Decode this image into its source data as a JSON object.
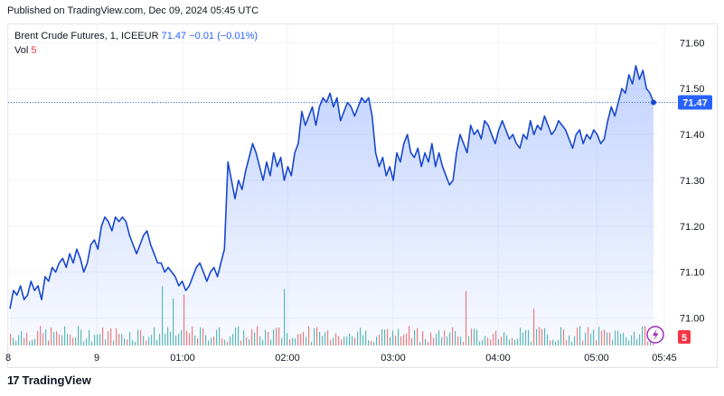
{
  "banner": "Published on TradingView.com, Dec 09, 2024 05:45 UTC",
  "legend": {
    "symbol": "Brent Crude Futures, 1, ICEEUR",
    "last": "71.47",
    "change": "−0.01 (−0.01%)",
    "vol_label": "Vol",
    "vol_value": "5"
  },
  "footer": {
    "brand": "TradingView",
    "logo_glyph": "17"
  },
  "badges": {
    "price": "71.47",
    "volume": "5"
  },
  "colors": {
    "line": "#1848cc",
    "area": "#2962ff",
    "vol_up": "#26a69a",
    "vol_down": "#ef5350",
    "grid": "#f0f3fa"
  },
  "chart_data": {
    "type": "area",
    "ylim": [
      70.94,
      71.64
    ],
    "y_ticks": [
      "71.60",
      "71.50",
      "71.40",
      "71.30",
      "71.20",
      "71.10",
      "71.00"
    ],
    "x_ticks": [
      "8",
      "9",
      "01:00",
      "02:00",
      "03:00",
      "04:00",
      "05:00",
      "05:45"
    ],
    "last_price": 71.47,
    "series": [
      {
        "values": [
          71.02,
          71.06,
          71.05,
          71.07,
          71.04,
          71.05,
          71.08,
          71.06,
          71.07,
          71.04,
          71.09,
          71.08,
          71.11,
          71.1,
          71.12,
          71.13,
          71.11,
          71.14,
          71.12,
          71.15,
          71.13,
          71.1,
          71.12,
          71.16,
          71.17,
          71.15,
          71.2,
          71.22,
          71.21,
          71.19,
          71.22,
          71.21,
          71.22,
          71.21,
          71.18,
          71.16,
          71.14,
          71.16,
          71.18,
          71.19,
          71.16,
          71.14,
          71.12,
          71.12,
          71.1,
          71.11,
          71.1,
          71.09,
          71.07,
          71.08,
          71.06,
          71.07,
          71.09,
          71.11,
          71.12,
          71.1,
          71.08,
          71.1,
          71.11,
          71.09,
          71.12,
          71.15,
          71.34,
          71.3,
          71.26,
          71.3,
          71.28,
          71.32,
          71.35,
          71.38,
          71.36,
          71.33,
          71.3,
          71.34,
          71.31,
          71.36,
          71.33,
          71.35,
          71.3,
          71.33,
          71.31,
          71.36,
          71.38,
          71.45,
          71.42,
          71.44,
          71.46,
          71.42,
          71.46,
          71.48,
          71.47,
          71.49,
          71.46,
          71.48,
          71.43,
          71.45,
          71.47,
          71.46,
          71.44,
          71.46,
          71.48,
          71.47,
          71.48,
          71.44,
          71.36,
          71.33,
          71.35,
          71.31,
          71.33,
          71.3,
          71.36,
          71.34,
          71.38,
          71.4,
          71.36,
          71.35,
          71.37,
          71.33,
          71.36,
          71.34,
          71.38,
          71.33,
          71.36,
          71.33,
          71.31,
          71.29,
          71.3,
          71.36,
          71.4,
          71.38,
          71.36,
          71.42,
          71.4,
          71.41,
          71.39,
          71.43,
          71.42,
          71.4,
          71.38,
          71.41,
          71.43,
          71.41,
          71.39,
          71.4,
          71.38,
          71.37,
          71.4,
          71.39,
          71.43,
          71.4,
          71.42,
          71.41,
          71.44,
          71.42,
          71.4,
          71.41,
          71.43,
          71.42,
          71.41,
          71.39,
          71.37,
          71.4,
          71.41,
          71.38,
          71.4,
          71.39,
          71.41,
          71.4,
          71.38,
          71.39,
          71.43,
          71.46,
          71.44,
          71.47,
          71.5,
          71.49,
          71.53,
          71.51,
          71.55,
          71.52,
          71.54,
          71.5,
          71.49,
          71.47
        ]
      }
    ]
  }
}
